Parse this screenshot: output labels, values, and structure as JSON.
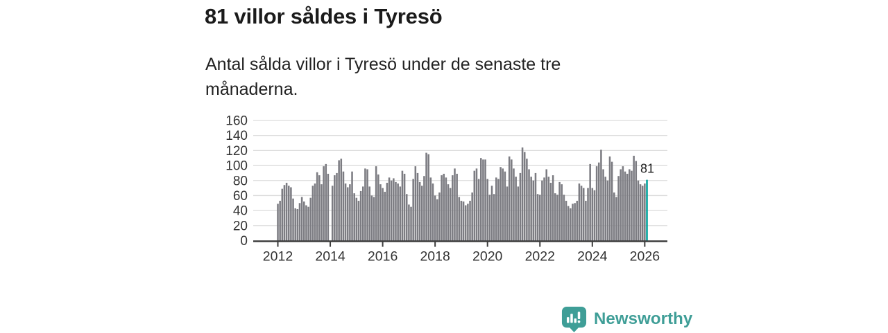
{
  "header": {
    "title": "81 villor såldes i Tyresö",
    "subtitle": "Antal sålda villor i Tyresö under de senaste tre månaderna."
  },
  "brand": {
    "name": "Newsworthy",
    "color": "#3f9e97",
    "icon": "bar-chart-speech-bubble-icon"
  },
  "chart_data": {
    "type": "bar",
    "title": "81 villor såldes i Tyresö",
    "frequency": "monthly",
    "x_start": "2012-01",
    "x_end": "2026-02",
    "xlabel": "",
    "ylabel": "",
    "ylim": [
      0,
      160
    ],
    "yticks": [
      0,
      20,
      40,
      60,
      80,
      100,
      120,
      140,
      160
    ],
    "xtick_labels": [
      "2012",
      "2014",
      "2016",
      "2018",
      "2020",
      "2022",
      "2024",
      "2026"
    ],
    "xtick_month_interval": 24,
    "grid": "horizontal",
    "bar_color": "#7c7c82",
    "gridline_color": "#dcdcdc",
    "axis_color": "#3c3c3c",
    "tick_label_color": "#333333",
    "annotation_color": "#1d1d1d",
    "highlight": {
      "index": 169,
      "value": 81,
      "label": "81",
      "color": "#00a39c"
    },
    "values": [
      49,
      53,
      69,
      74,
      77,
      73,
      71,
      56,
      43,
      42,
      50,
      58,
      52,
      47,
      45,
      57,
      73,
      76,
      91,
      87,
      75,
      99,
      102,
      89,
      null,
      73,
      87,
      90,
      107,
      109,
      92,
      76,
      71,
      75,
      92,
      63,
      57,
      53,
      66,
      72,
      96,
      95,
      72,
      60,
      58,
      99,
      88,
      75,
      70,
      65,
      77,
      84,
      80,
      83,
      78,
      76,
      72,
      93,
      89,
      62,
      48,
      45,
      82,
      99,
      90,
      78,
      73,
      86,
      117,
      115,
      84,
      76,
      60,
      55,
      64,
      87,
      89,
      84,
      75,
      70,
      87,
      96,
      89,
      58,
      53,
      52,
      47,
      49,
      53,
      64,
      93,
      96,
      82,
      110,
      108,
      108,
      82,
      61,
      73,
      62,
      84,
      82,
      98,
      96,
      92,
      72,
      112,
      108,
      96,
      85,
      72,
      90,
      124,
      118,
      109,
      95,
      85,
      80,
      90,
      62,
      61,
      80,
      84,
      95,
      85,
      77,
      87,
      63,
      61,
      78,
      75,
      61,
      53,
      46,
      43,
      49,
      50,
      53,
      76,
      73,
      70,
      53,
      70,
      102,
      70,
      67,
      99,
      104,
      121,
      95,
      85,
      80,
      112,
      105,
      64,
      58,
      86,
      95,
      99,
      92,
      89,
      95,
      93,
      113,
      106,
      80,
      75,
      73,
      76,
      81
    ]
  }
}
